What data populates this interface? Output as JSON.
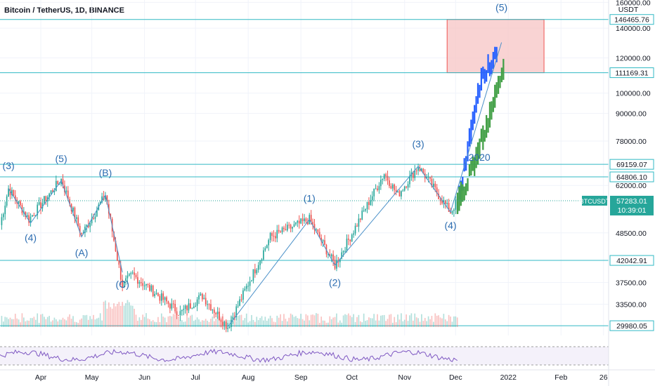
{
  "header": {
    "title": "Bitcoin / TetherUS, 1D, BINANCE",
    "currency": "USDT"
  },
  "colors": {
    "up": "#26a69a",
    "down": "#ef5350",
    "level": "#31b9c4",
    "wave": "#4a90c8",
    "wave_text": "#2b6cb0",
    "proj_blue": "#2962ff",
    "proj_green": "#43a047",
    "target_fill": "#f8c8c8",
    "target_stroke": "#ef5350",
    "rsi": "#7e57c2"
  },
  "chart_data": {
    "type": "candlestick",
    "symbol": "BTCUSDT",
    "timeframe": "1D",
    "exchange": "BINANCE",
    "y_scale": "log",
    "ylim": [
      28500,
      162000
    ],
    "x_range": [
      "2021-03-08",
      "2022-03-01"
    ],
    "x_ticks": [
      {
        "date": "2021-04-01",
        "label": "Apr"
      },
      {
        "date": "2021-05-01",
        "label": "May"
      },
      {
        "date": "2021-06-01",
        "label": "Jun"
      },
      {
        "date": "2021-07-01",
        "label": "Jul"
      },
      {
        "date": "2021-08-01",
        "label": "Aug"
      },
      {
        "date": "2021-09-01",
        "label": "Sep"
      },
      {
        "date": "2021-10-01",
        "label": "Oct"
      },
      {
        "date": "2021-11-01",
        "label": "Nov"
      },
      {
        "date": "2021-12-01",
        "label": "Dec"
      },
      {
        "date": "2022-01-01",
        "label": "2022"
      },
      {
        "date": "2022-02-01",
        "label": "Feb"
      },
      {
        "date": "2022-02-26",
        "label": "26"
      }
    ],
    "y_ticks": [
      "33500.00",
      "37500.00",
      "48500.00",
      "62000.00",
      "78000.00",
      "90000.00",
      "100000.00",
      "120000.00",
      "140000.00",
      "160000.00"
    ],
    "price_anchors": [
      [
        "2021-03-08",
        50500
      ],
      [
        "2021-03-13",
        61000
      ],
      [
        "2021-03-25",
        52000
      ],
      [
        "2021-04-13",
        64000
      ],
      [
        "2021-04-25",
        48000
      ],
      [
        "2021-05-09",
        59000
      ],
      [
        "2021-05-19",
        37000
      ],
      [
        "2021-05-25",
        39000
      ],
      [
        "2021-06-22",
        32000
      ],
      [
        "2021-07-05",
        35000
      ],
      [
        "2021-07-20",
        29800
      ],
      [
        "2021-08-14",
        47500
      ],
      [
        "2021-09-06",
        52000
      ],
      [
        "2021-09-21",
        41000
      ],
      [
        "2021-10-20",
        66000
      ],
      [
        "2021-10-28",
        59000
      ],
      [
        "2021-11-09",
        68500
      ],
      [
        "2021-11-28",
        54000
      ],
      [
        "2021-12-02",
        57283
      ]
    ],
    "horizontal_levels": [
      "146465.76",
      "111169.31",
      "69159.07",
      "64806.10",
      "42042.91",
      "29980.05"
    ],
    "current_price": {
      "symbol": "BTCUSDT",
      "price": "57283.01",
      "countdown": "10:39:01"
    },
    "target_zone": {
      "x_from": "2021-11-26",
      "x_to": "2022-01-22",
      "y_from": 111169.31,
      "y_to": 146465.76
    },
    "wave_lines": [
      {
        "points": [
          [
            "2021-03-13",
            61000
          ],
          [
            "2021-03-26",
            51000
          ],
          [
            "2021-04-13",
            63500
          ],
          [
            "2021-04-25",
            47500
          ],
          [
            "2021-05-09",
            59000
          ],
          [
            "2021-05-19",
            39500
          ]
        ]
      },
      {
        "points": [
          [
            "2021-07-20",
            29800
          ],
          [
            "2021-09-06",
            52000
          ],
          [
            "2021-09-21",
            41000
          ],
          [
            "2021-11-09",
            68500
          ],
          [
            "2021-11-28",
            54000
          ],
          [
            "2021-12-28",
            130000
          ]
        ]
      }
    ],
    "wave_labels": [
      {
        "text": "(3)",
        "date": "2021-03-13",
        "price": 67500
      },
      {
        "text": "(4)",
        "date": "2021-03-26",
        "price": 46500
      },
      {
        "text": "(5)",
        "date": "2021-04-13",
        "price": 70000
      },
      {
        "text": "(A)",
        "date": "2021-04-25",
        "price": 43000
      },
      {
        "text": "(B)",
        "date": "2021-05-09",
        "price": 65000
      },
      {
        "text": "(C)",
        "date": "2021-05-19",
        "price": 36500
      },
      {
        "text": "(1)",
        "date": "2021-09-06",
        "price": 57000
      },
      {
        "text": "(2)",
        "date": "2021-09-21",
        "price": 36800
      },
      {
        "text": "(3)",
        "date": "2021-11-09",
        "price": 75500
      },
      {
        "text": "(4)",
        "date": "2021-11-28",
        "price": 49500
      },
      {
        "text": "(5)",
        "date": "2021-12-28",
        "price": 153000
      },
      {
        "text": "2020",
        "date": "2021-12-15",
        "price": 70500
      }
    ],
    "projection": {
      "blue": [
        [
          "2021-12-02",
          55000
        ],
        [
          "2021-12-08",
          75000
        ],
        [
          "2021-12-13",
          95000
        ],
        [
          "2021-12-17",
          112000
        ],
        [
          "2021-12-22",
          116000
        ],
        [
          "2021-12-26",
          128000
        ]
      ],
      "green": [
        [
          "2021-12-02",
          57000
        ],
        [
          "2021-12-10",
          66000
        ],
        [
          "2021-12-17",
          80000
        ],
        [
          "2021-12-24",
          98000
        ],
        [
          "2021-12-30",
          118000
        ]
      ]
    },
    "rsi": {
      "visible": true
    }
  }
}
